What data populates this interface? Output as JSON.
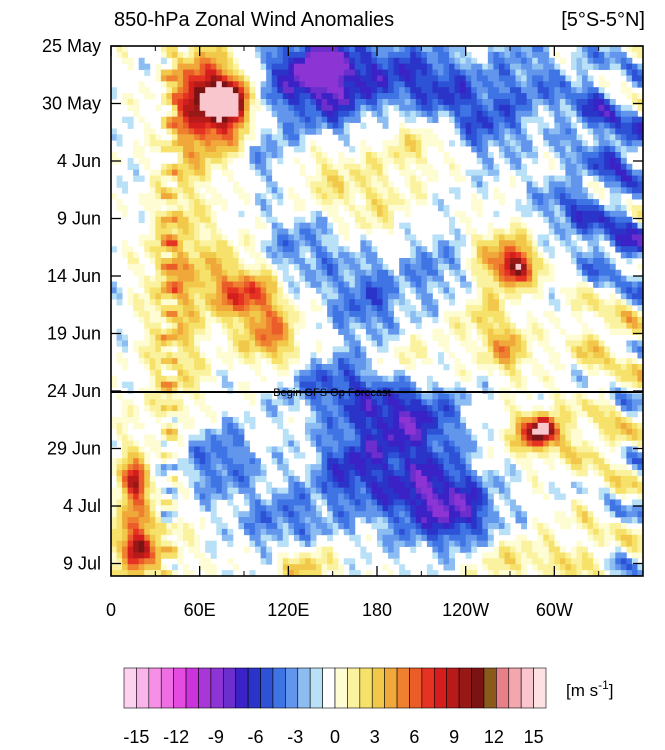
{
  "chart_data": {
    "type": "heatmap",
    "title": "850-hPa Zonal Wind Anomalies",
    "region": "[5°S-5°N]",
    "x_ticks": [
      "0",
      "60E",
      "120E",
      "180",
      "120W",
      "60W"
    ],
    "x_tick_values": [
      0,
      60,
      120,
      180,
      240,
      300
    ],
    "x_range": [
      0,
      360
    ],
    "y_ticks": [
      "25 May",
      "30 May",
      "4 Jun",
      "9 Jun",
      "14 Jun",
      "19 Jun",
      "24 Jun",
      "29 Jun",
      "4 Jul",
      "9 Jul"
    ],
    "y_range_days": [
      0,
      46
    ],
    "annotation": {
      "text": "Begin GFS Op Forecast",
      "date": "24 Jun"
    },
    "colorbar": {
      "units_prefix": "[m s",
      "units_sup": "-1",
      "units_suffix": "]",
      "tick_labels": [
        "-15",
        "-12",
        "-9",
        "-6",
        "-3",
        "0",
        "3",
        "6",
        "9",
        "12",
        "15"
      ],
      "tick_values": [
        -15,
        -12,
        -9,
        -6,
        -3,
        0,
        3,
        6,
        9,
        12,
        15
      ],
      "levels": [
        -15,
        -14,
        -13,
        -12,
        -11,
        -10,
        -9,
        -8,
        -7,
        -6,
        -5,
        -4,
        -3,
        -2,
        -1,
        1,
        2,
        3,
        4,
        5,
        6,
        7,
        8,
        9,
        10,
        11,
        12,
        13,
        14,
        15
      ],
      "colors": [
        "#fcd2ee",
        "#f9b4ea",
        "#f690e6",
        "#f06ee4",
        "#e54be0",
        "#cc33dd",
        "#a836d8",
        "#8c34d4",
        "#6c2fce",
        "#3a22c6",
        "#2a34c8",
        "#2e52d6",
        "#3f74e4",
        "#6296ec",
        "#8bbcf2",
        "#b8e0f6",
        "#ffffff",
        "#fdfcd2",
        "#fbf2a0",
        "#f6e26a",
        "#f2c84a",
        "#f0a83a",
        "#ee8030",
        "#ea5c28",
        "#e63222",
        "#d41e1e",
        "#b81a1a",
        "#981818",
        "#7a1414",
        "#8a5a1a",
        "#e8808a",
        "#f2a6ae",
        "#f8c6cc",
        "#fde2e4"
      ]
    }
  }
}
